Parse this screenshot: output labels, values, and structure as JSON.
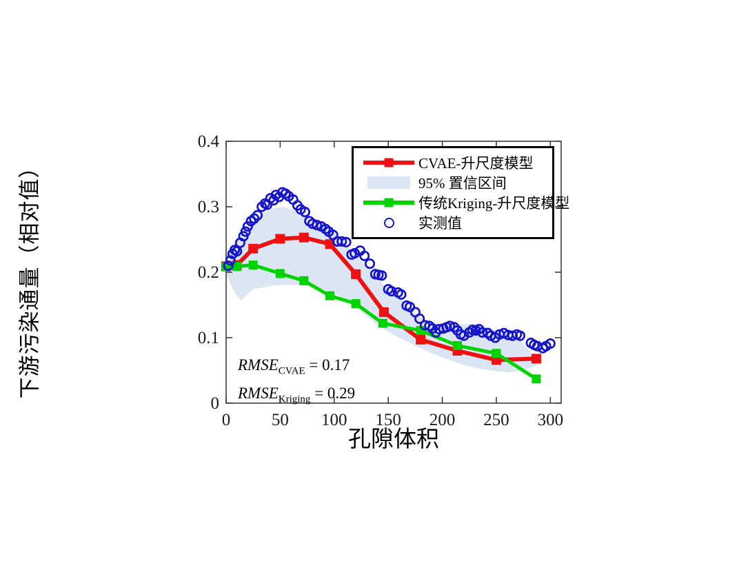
{
  "chart_data": {
    "type": "line",
    "title": "",
    "xlabel": "孔隙体积",
    "ylabel": "下游污染通量（相对值）",
    "xlim": [
      0,
      310
    ],
    "ylim": [
      0,
      0.4
    ],
    "grid": false,
    "legend_position": "top-right",
    "axis_color": "#3c3c3c",
    "x_ticks": [
      {
        "v": 0,
        "label": "0"
      },
      {
        "v": 50,
        "label": "50"
      },
      {
        "v": 100,
        "label": "100"
      },
      {
        "v": 150,
        "label": "150"
      },
      {
        "v": 200,
        "label": "200"
      },
      {
        "v": 250,
        "label": "250"
      },
      {
        "v": 300,
        "label": "300"
      }
    ],
    "y_ticks": [
      {
        "v": 0,
        "label": "0"
      },
      {
        "v": 0.1,
        "label": "0.1"
      },
      {
        "v": 0.2,
        "label": "0.2"
      },
      {
        "v": 0.3,
        "label": "0.3"
      },
      {
        "v": 0.4,
        "label": "0.4"
      }
    ],
    "series": [
      {
        "name": "CVAE-升尺度模型",
        "type": "line",
        "color": "#ee1111",
        "marker": "filled-square",
        "x": [
          0,
          10,
          25,
          50,
          72,
          96,
          120,
          146,
          180,
          214,
          250,
          287
        ],
        "y": [
          0.209,
          0.211,
          0.236,
          0.251,
          0.253,
          0.243,
          0.197,
          0.139,
          0.097,
          0.08,
          0.066,
          0.068
        ]
      },
      {
        "name": "95% 置信区间",
        "type": "band",
        "color": "#dbe5f4",
        "upper_x": [
          0,
          8,
          16,
          25,
          35,
          45,
          53,
          62,
          72,
          82,
          92,
          100,
          108,
          116,
          126,
          136,
          146,
          156,
          166,
          176,
          188,
          200,
          212,
          225,
          238,
          250,
          262,
          272,
          283,
          291
        ],
        "upper_y": [
          0.225,
          0.243,
          0.262,
          0.277,
          0.291,
          0.298,
          0.3,
          0.295,
          0.287,
          0.278,
          0.27,
          0.26,
          0.247,
          0.232,
          0.215,
          0.198,
          0.18,
          0.167,
          0.152,
          0.136,
          0.123,
          0.118,
          0.119,
          0.121,
          0.118,
          0.112,
          0.104,
          0.096,
          0.075,
          0.06
        ],
        "lower_x": [
          0,
          8,
          14,
          25,
          45,
          65,
          85,
          100,
          112,
          125,
          138,
          154,
          170,
          185,
          200,
          215,
          230,
          245,
          260,
          272,
          283,
          291
        ],
        "lower_y": [
          0.196,
          0.168,
          0.157,
          0.174,
          0.18,
          0.181,
          0.176,
          0.168,
          0.156,
          0.14,
          0.122,
          0.105,
          0.092,
          0.08,
          0.07,
          0.061,
          0.054,
          0.05,
          0.047,
          0.049,
          0.055,
          0.06
        ]
      },
      {
        "name": "传统Kriging-升尺度模型",
        "type": "line",
        "color": "#00d400",
        "marker": "filled-square",
        "x": [
          0,
          10,
          25,
          50,
          72,
          96,
          120,
          145,
          180,
          214,
          250,
          287
        ],
        "y": [
          0.208,
          0.209,
          0.211,
          0.198,
          0.187,
          0.164,
          0.152,
          0.122,
          0.111,
          0.088,
          0.076,
          0.037
        ]
      },
      {
        "name": "实测值",
        "type": "scatter",
        "color": "#1414cc",
        "marker": "open-circle",
        "x": [
          2,
          4,
          6,
          8,
          10,
          13,
          16,
          18,
          20,
          23,
          26,
          29,
          33,
          36,
          38,
          41,
          44,
          46,
          49,
          52,
          55,
          58,
          62,
          66,
          69,
          73,
          77,
          80,
          84,
          88,
          92,
          95,
          99,
          103,
          107,
          111,
          116,
          119,
          124,
          128,
          133,
          138,
          141,
          144,
          150,
          153,
          159,
          162,
          167,
          170,
          175,
          179,
          184,
          188,
          191,
          194,
          197,
          201,
          204,
          207,
          211,
          214,
          217,
          220,
          225,
          228,
          231,
          234,
          237,
          242,
          245,
          249,
          253,
          257,
          261,
          265,
          269,
          272,
          282,
          285,
          288,
          293,
          296,
          300
        ],
        "y": [
          0.21,
          0.218,
          0.228,
          0.234,
          0.232,
          0.245,
          0.255,
          0.262,
          0.27,
          0.278,
          0.282,
          0.287,
          0.3,
          0.305,
          0.303,
          0.313,
          0.31,
          0.318,
          0.315,
          0.322,
          0.32,
          0.316,
          0.311,
          0.302,
          0.296,
          0.292,
          0.278,
          0.274,
          0.272,
          0.27,
          0.266,
          0.262,
          0.257,
          0.247,
          0.247,
          0.246,
          0.227,
          0.229,
          0.233,
          0.225,
          0.213,
          0.197,
          0.196,
          0.195,
          0.174,
          0.171,
          0.169,
          0.166,
          0.149,
          0.147,
          0.139,
          0.129,
          0.119,
          0.118,
          0.114,
          0.108,
          0.113,
          0.114,
          0.116,
          0.118,
          0.116,
          0.111,
          0.105,
          0.103,
          0.108,
          0.112,
          0.111,
          0.113,
          0.108,
          0.107,
          0.103,
          0.1,
          0.105,
          0.107,
          0.104,
          0.103,
          0.105,
          0.103,
          0.092,
          0.089,
          0.087,
          0.084,
          0.087,
          0.091
        ]
      }
    ],
    "annotations": [
      {
        "text": "RMSE",
        "sub": "CVAE",
        "suffix": " = 0.17"
      },
      {
        "text": "RMSE",
        "sub": "Kriging",
        "suffix": " = 0.29"
      }
    ]
  }
}
